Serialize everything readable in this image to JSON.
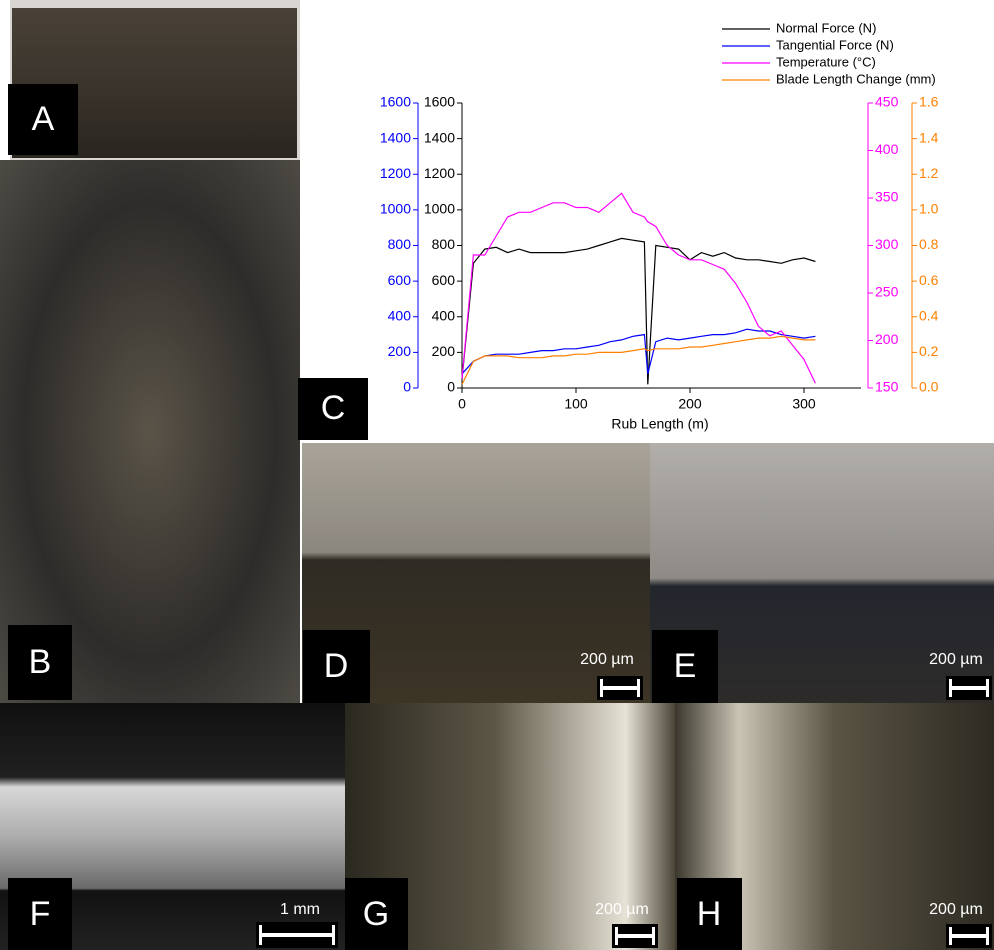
{
  "panel_labels": [
    "A",
    "B",
    "C",
    "D",
    "E",
    "F",
    "G",
    "H"
  ],
  "scale_bar_labels": [
    "200 µm",
    "200 µm",
    "1 mm",
    "200 µm",
    "200 µm"
  ],
  "chart_data": {
    "type": "line",
    "x_label": "Rub Length (m)",
    "xlim": [
      0,
      350
    ],
    "xticks": [
      0,
      100,
      200,
      300
    ],
    "ylim": [
      0,
      1600
    ],
    "yticks": [
      0,
      200,
      400,
      600,
      800,
      1000,
      1200,
      1400,
      1600
    ],
    "y2lim": [
      150,
      450
    ],
    "y2ticks": [
      150,
      200,
      250,
      300,
      350,
      400,
      450
    ],
    "y3lim": [
      0,
      1600
    ],
    "y3ticks": [
      0,
      200,
      400,
      600,
      800,
      1000,
      1200,
      1400,
      1600
    ],
    "y4lim": [
      0,
      1.6
    ],
    "y4ticks": [
      {
        "value": 0,
        "label": "0.0"
      },
      0.2,
      0.4,
      0.6,
      0.8,
      {
        "value": 1,
        "label": "1.0"
      },
      1.2,
      1.4,
      1.6
    ],
    "x": [
      0,
      10,
      20,
      30,
      40,
      50,
      60,
      70,
      80,
      90,
      100,
      110,
      120,
      130,
      140,
      150,
      160,
      163,
      170,
      180,
      190,
      200,
      210,
      220,
      230,
      240,
      250,
      260,
      270,
      280,
      290,
      300,
      310
    ],
    "series": [
      {
        "name": "Normal Force (N)",
        "color": "#000000",
        "axis": "y",
        "values": [
          50,
          700,
          780,
          790,
          760,
          780,
          760,
          760,
          760,
          760,
          770,
          780,
          800,
          820,
          840,
          830,
          820,
          20,
          800,
          790,
          780,
          720,
          760,
          740,
          760,
          730,
          720,
          720,
          710,
          700,
          720,
          730,
          710
        ]
      },
      {
        "name": "Tangential Force (N)",
        "color": "#0000ff",
        "axis": "y3",
        "values": [
          80,
          150,
          180,
          190,
          190,
          190,
          200,
          210,
          210,
          220,
          220,
          230,
          240,
          260,
          270,
          290,
          300,
          80,
          260,
          280,
          270,
          280,
          290,
          300,
          300,
          310,
          330,
          320,
          320,
          300,
          290,
          280,
          290
        ]
      },
      {
        "name": "Temperature (°C)",
        "color": "#ff00ff",
        "axis": "y2",
        "values": [
          160,
          290,
          290,
          310,
          330,
          335,
          335,
          340,
          345,
          345,
          340,
          340,
          335,
          345,
          355,
          335,
          330,
          325,
          320,
          300,
          290,
          285,
          285,
          280,
          275,
          260,
          240,
          215,
          205,
          210,
          195,
          180,
          155
        ]
      },
      {
        "name": "Blade Length Change (mm)",
        "color": "#ff8000",
        "axis": "y4",
        "values": [
          0.02,
          0.15,
          0.18,
          0.18,
          0.18,
          0.17,
          0.17,
          0.17,
          0.18,
          0.18,
          0.19,
          0.19,
          0.2,
          0.2,
          0.2,
          0.21,
          0.22,
          0.21,
          0.22,
          0.22,
          0.22,
          0.23,
          0.23,
          0.24,
          0.25,
          0.26,
          0.27,
          0.28,
          0.28,
          0.29,
          0.28,
          0.27,
          0.27
        ]
      }
    ]
  }
}
